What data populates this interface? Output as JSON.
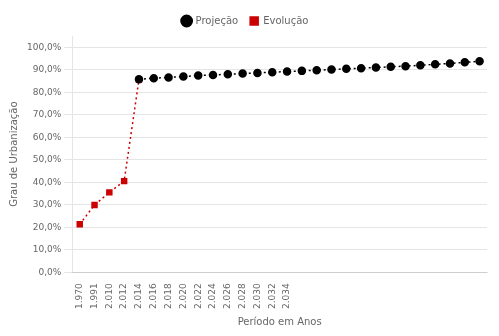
{
  "chart_data": {
    "type": "line",
    "xlabel": "Período em Anos",
    "ylabel": "Grau de Urbanização",
    "categories": [
      "1.970",
      "1.991",
      "2.010",
      "2.012",
      "2.014",
      "2.016",
      "2.018",
      "2.020",
      "2.022",
      "2.024",
      "2.026",
      "2.028",
      "2.030",
      "2.032",
      "2.034",
      null,
      null,
      null,
      null,
      null,
      null,
      null,
      null,
      null,
      null,
      null,
      null,
      null
    ],
    "series": [
      {
        "name": "Projeção",
        "color": "#000000",
        "marker": "circle",
        "line_style": "dotted",
        "values": [
          null,
          null,
          null,
          null,
          0.858,
          0.862,
          0.866,
          0.87,
          0.874,
          0.877,
          0.88,
          0.883,
          0.886,
          0.889,
          0.892,
          0.895,
          0.898,
          0.901,
          0.904,
          0.907,
          0.91,
          0.913,
          0.916,
          0.92,
          0.924,
          0.928,
          0.933,
          0.938
        ]
      },
      {
        "name": "Evolução",
        "color": "#cc0000",
        "marker": "square",
        "line_style": "dotted",
        "values": [
          0.213,
          0.299,
          0.355,
          0.405,
          0.856,
          null,
          null,
          null,
          null,
          null,
          null,
          null,
          null,
          null,
          null,
          null,
          null,
          null,
          null,
          null,
          null,
          null,
          null,
          null,
          null,
          null,
          null,
          null
        ]
      }
    ],
    "ylim": [
      0.0,
      1.05
    ],
    "yticks": [
      {
        "value": 0.0,
        "label": "0,0%"
      },
      {
        "value": 0.1,
        "label": "10,0%"
      },
      {
        "value": 0.2,
        "label": "20,0%"
      },
      {
        "value": 0.3,
        "label": "30,0%"
      },
      {
        "value": 0.4,
        "label": "40,0%"
      },
      {
        "value": 0.5,
        "label": "50,0%"
      },
      {
        "value": 0.6,
        "label": "60,0%"
      },
      {
        "value": 0.7,
        "label": "70,0%"
      },
      {
        "value": 0.8,
        "label": "80,0%"
      },
      {
        "value": 0.9,
        "label": "90,0%"
      },
      {
        "value": 1.0,
        "label": "100,0%"
      }
    ],
    "grid": "y",
    "legend": "top"
  }
}
